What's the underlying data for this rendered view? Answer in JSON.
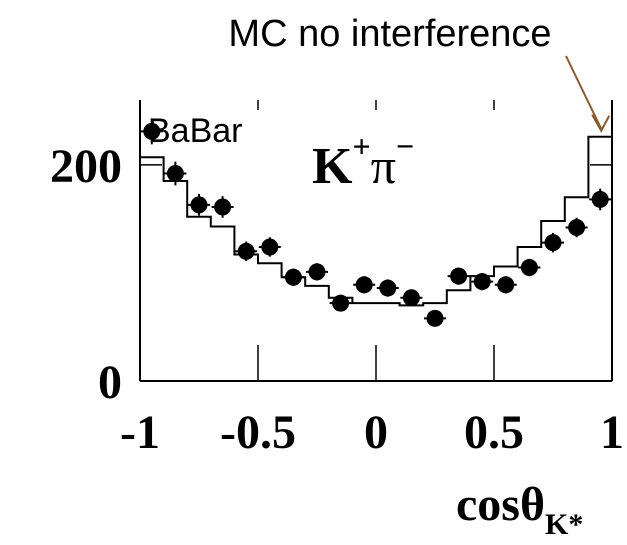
{
  "chart_data": {
    "type": "scatter",
    "experiment_label": "BaBar",
    "channel_label": {
      "main": "K",
      "sup": "+",
      "second": "π",
      "sup2": "−"
    },
    "xlabel": {
      "main": "cosθ",
      "sub": "K*"
    },
    "ylabel": "",
    "xlim": [
      -1,
      1
    ],
    "ylim": [
      0,
      260
    ],
    "x_ticks": [
      {
        "value": -1,
        "label": "-1"
      },
      {
        "value": -0.5,
        "label": "-0.5"
      },
      {
        "value": 0,
        "label": "0"
      },
      {
        "value": 0.5,
        "label": "0.5"
      },
      {
        "value": 1,
        "label": "1"
      }
    ],
    "y_ticks": [
      {
        "value": 0,
        "label": "0"
      },
      {
        "value": 200,
        "label": "200"
      }
    ],
    "grid": false,
    "series": [
      {
        "kind": "points",
        "x": [
          -0.95,
          -0.85,
          -0.75,
          -0.65,
          -0.55,
          -0.45,
          -0.35,
          -0.25,
          -0.15,
          -0.05,
          0.05,
          0.15,
          0.25,
          0.35,
          0.45,
          0.55,
          0.65,
          0.75,
          0.85,
          0.95
        ],
        "values": [
          231,
          192,
          163,
          161,
          120,
          124,
          96,
          101,
          72,
          89,
          86,
          77,
          58,
          97,
          92,
          89,
          105,
          128,
          142,
          168
        ],
        "errors": [
          12,
          11,
          10,
          10,
          9,
          9,
          8,
          8,
          7,
          8,
          8,
          7,
          6,
          8,
          8,
          8,
          8,
          9,
          9,
          10
        ]
      },
      {
        "kind": "histogram",
        "name": "MC no interference",
        "bin_edges": [
          -1,
          -0.9,
          -0.8,
          -0.7,
          -0.6,
          -0.5,
          -0.4,
          -0.3,
          -0.2,
          -0.1,
          0,
          0.1,
          0.2,
          0.3,
          0.4,
          0.5,
          0.6,
          0.7,
          0.8,
          0.9,
          1
        ],
        "values": [
          207,
          185,
          152,
          143,
          117,
          109,
          96,
          88,
          77,
          72,
          72,
          70,
          72,
          84,
          97,
          106,
          124,
          148,
          170,
          226
        ]
      }
    ],
    "annotations": [
      {
        "text": "MC no interference",
        "target_x": 0.95
      }
    ]
  }
}
